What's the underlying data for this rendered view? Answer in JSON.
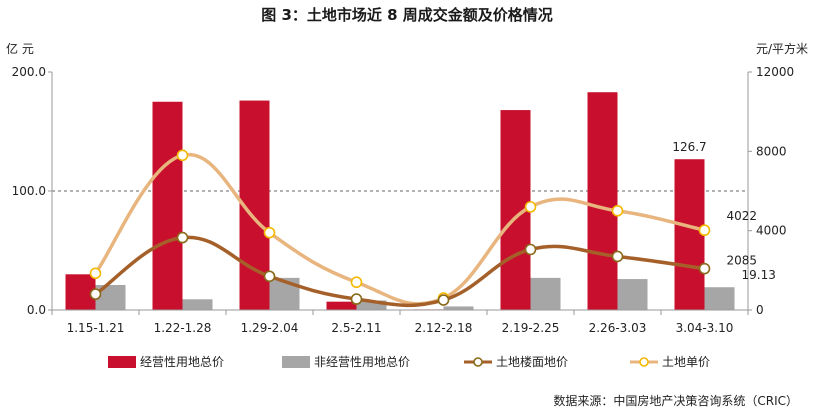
{
  "chart_data": {
    "type": "bar",
    "title": "图 3：土地市场近 8 周成交金额及价格情况",
    "left_unit": "亿 元",
    "right_unit": "元/平方米",
    "categories": [
      "1.15-1.21",
      "1.22-1.28",
      "1.29-2.04",
      "2.5-2.11",
      "2.12-2.18",
      "2.19-2.25",
      "2.26-3.03",
      "3.04-3.10"
    ],
    "left_axis": {
      "ylim": [
        0,
        200
      ],
      "ticks": [
        "0.0",
        "100.0",
        "200.0"
      ],
      "tick_values": [
        0,
        100,
        200
      ]
    },
    "right_axis": {
      "ylim": [
        0,
        12000
      ],
      "ticks": [
        "0",
        "4000",
        "8000",
        "12000"
      ],
      "tick_values": [
        0,
        4000,
        8000,
        12000
      ]
    },
    "reference_line": {
      "axis": "left",
      "value": 100,
      "style": "dashed"
    },
    "series": [
      {
        "name": "经营性用地总价",
        "type": "bar",
        "axis": "left",
        "color": "#c8102e",
        "values": [
          30,
          175,
          176,
          7,
          0.5,
          168,
          183,
          126.7
        ]
      },
      {
        "name": "非经营性用地总价",
        "type": "bar",
        "axis": "left",
        "color": "#a6a6a6",
        "values": [
          21,
          9,
          27,
          8,
          3,
          27,
          26,
          19.13
        ]
      },
      {
        "name": "土地楼面地价",
        "type": "line",
        "axis": "right",
        "color": "#a5602a",
        "values": [
          800,
          3650,
          1700,
          550,
          500,
          3050,
          2700,
          2085
        ]
      },
      {
        "name": "土地单价",
        "type": "line",
        "axis": "right",
        "color": "#e8b57e",
        "values": [
          1850,
          7800,
          3900,
          1400,
          600,
          5200,
          5000,
          4022
        ]
      }
    ],
    "data_labels": [
      {
        "series": "经营性用地总价",
        "index": 7,
        "text": "126.7"
      },
      {
        "series": "土地单价",
        "index": 7,
        "text": "4022"
      },
      {
        "series": "土地楼面地价",
        "index": 7,
        "text": "2085"
      },
      {
        "series": "非经营性用地总价",
        "index": 7,
        "text": "19.13"
      }
    ],
    "legend_position": "bottom",
    "source": "数据来源：中国房地产决策咨询系统（CRIC）"
  }
}
